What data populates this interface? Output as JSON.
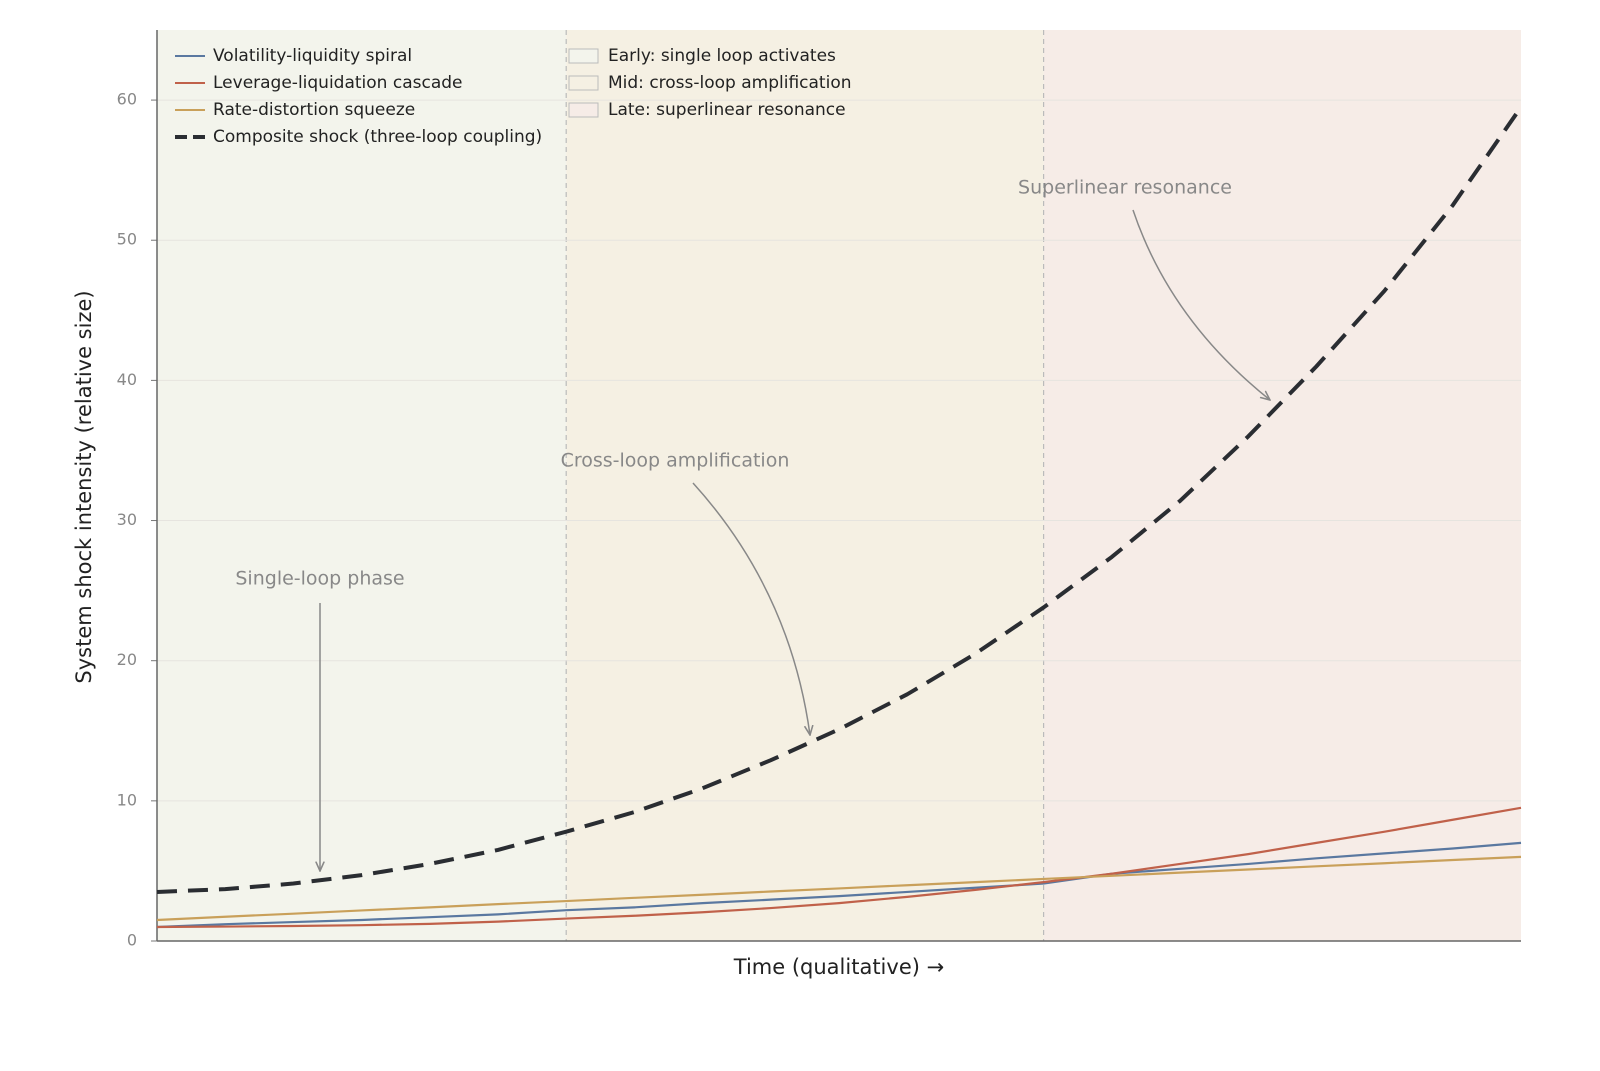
{
  "chart_data": {
    "type": "line",
    "xlabel": "Time (qualitative)  →",
    "ylabel": "System shock intensity (relative size)",
    "x": [
      0,
      0.5,
      1,
      1.5,
      2,
      2.5,
      3,
      3.5,
      4,
      4.5,
      5,
      5.5,
      6,
      6.5,
      7,
      7.5,
      8,
      8.5,
      9,
      9.5,
      10
    ],
    "xlim": [
      0,
      10
    ],
    "ylim": [
      0,
      65
    ],
    "yticks": [
      0,
      10,
      20,
      30,
      40,
      50,
      60
    ],
    "grid": true,
    "series": [
      {
        "name": "Volatility-liquidity spiral",
        "color": "#5a78a0",
        "values": [
          1.0,
          1.2,
          1.35,
          1.5,
          1.7,
          1.9,
          2.2,
          2.4,
          2.7,
          2.95,
          3.2,
          3.5,
          3.8,
          4.1,
          4.8,
          5.15,
          5.5,
          5.9,
          6.25,
          6.6,
          7.0
        ]
      },
      {
        "name": "Leverage-liquidation cascade",
        "color": "#c0614a",
        "values": [
          1.0,
          1.03,
          1.07,
          1.13,
          1.22,
          1.38,
          1.6,
          1.8,
          2.05,
          2.35,
          2.7,
          3.15,
          3.65,
          4.2,
          4.8,
          5.5,
          6.2,
          7.0,
          7.8,
          8.65,
          9.5
        ]
      },
      {
        "name": "Rate-distortion squeeze",
        "color": "#c9a05a",
        "values": [
          1.5,
          1.73,
          1.95,
          2.18,
          2.4,
          2.63,
          2.85,
          3.08,
          3.3,
          3.53,
          3.75,
          3.98,
          4.2,
          4.43,
          4.65,
          4.88,
          5.1,
          5.33,
          5.55,
          5.78,
          6.0
        ]
      },
      {
        "name": "Composite shock (three-loop coupling)",
        "color": "#2a2d32",
        "dashed": true,
        "values": [
          3.5,
          3.7,
          4.1,
          4.7,
          5.5,
          6.5,
          7.8,
          9.2,
          10.9,
          12.9,
          15.1,
          17.6,
          20.5,
          23.8,
          27.4,
          31.4,
          36.0,
          41.0,
          46.4,
          52.5,
          59.5
        ]
      }
    ],
    "phases": [
      {
        "name": "Early: single loop activates",
        "start": 0,
        "end": 3,
        "color": "#f3f4ec"
      },
      {
        "name": "Mid: cross-loop amplification",
        "start": 3,
        "end": 6.5,
        "color": "#f5f0e3"
      },
      {
        "name": "Late: superlinear resonance",
        "start": 6.5,
        "end": 10,
        "color": "#f6ece7"
      }
    ],
    "annotations": [
      "Single-loop phase",
      "Cross-loop amplification",
      "Superlinear resonance"
    ]
  }
}
